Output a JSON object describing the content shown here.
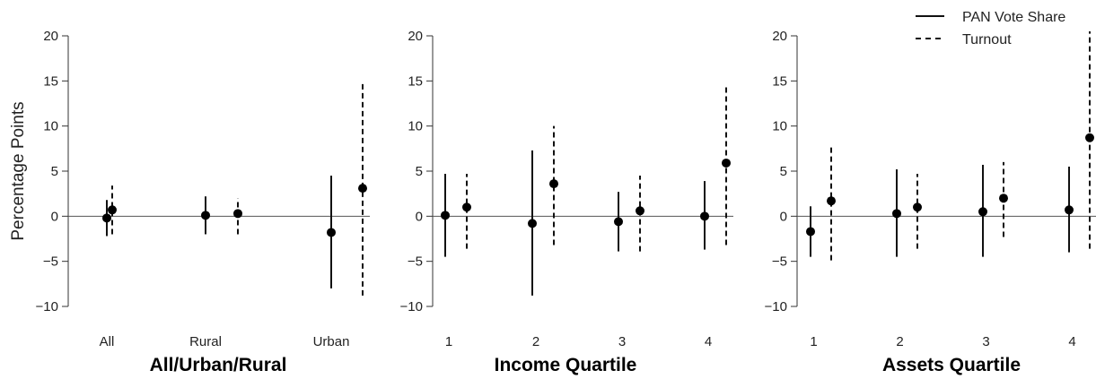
{
  "chart_data": {
    "type": "scatter",
    "ylabel": "Percentage Points",
    "ylim": [
      -10,
      20
    ],
    "yticks": [
      -10,
      -5,
      0,
      5,
      10,
      15,
      20
    ],
    "legend": {
      "placement": "top-right",
      "entries": [
        {
          "name": "PAN Vote Share",
          "style": "solid"
        },
        {
          "name": "Turnout",
          "style": "dashed"
        }
      ]
    },
    "panels": [
      {
        "title": "All/Urban/Rural",
        "categories": [
          "All",
          "Rural",
          "Urban"
        ],
        "series": [
          {
            "name": "PAN Vote Share",
            "style": "solid",
            "values": [
              -0.2,
              0.1,
              -1.8
            ],
            "lower": [
              -2.2,
              -2.0,
              -8.0
            ],
            "upper": [
              1.8,
              2.2,
              4.5
            ]
          },
          {
            "name": "Turnout",
            "style": "dashed",
            "values": [
              0.7,
              0.3,
              3.1
            ],
            "lower": [
              -2.0,
              -2.0,
              -8.8
            ],
            "upper": [
              3.4,
              2.0,
              14.8
            ]
          }
        ]
      },
      {
        "title": "Income Quartile",
        "categories": [
          "1",
          "2",
          "3",
          "4"
        ],
        "series": [
          {
            "name": "PAN Vote Share",
            "style": "solid",
            "values": [
              0.1,
              -0.8,
              -0.6,
              0.0
            ],
            "lower": [
              -4.5,
              -8.8,
              -3.9,
              -3.7
            ],
            "upper": [
              4.7,
              7.3,
              2.7,
              3.9
            ]
          },
          {
            "name": "Turnout",
            "style": "dashed",
            "values": [
              1.0,
              3.6,
              0.6,
              5.9
            ],
            "lower": [
              -3.6,
              -3.2,
              -3.9,
              -3.2
            ],
            "upper": [
              4.7,
              10.0,
              4.5,
              14.3
            ]
          }
        ]
      },
      {
        "title": "Assets Quartile",
        "categories": [
          "1",
          "2",
          "3",
          "4"
        ],
        "series": [
          {
            "name": "PAN Vote Share",
            "style": "solid",
            "values": [
              -1.7,
              0.3,
              0.5,
              0.7
            ],
            "lower": [
              -4.5,
              -4.5,
              -4.5,
              -4.0
            ],
            "upper": [
              1.1,
              5.2,
              5.7,
              5.5
            ]
          },
          {
            "name": "Turnout",
            "style": "dashed",
            "values": [
              1.7,
              1.0,
              2.0,
              8.7
            ],
            "lower": [
              -4.9,
              -3.6,
              -2.3,
              -3.6
            ],
            "upper": [
              8.0,
              4.7,
              6.0,
              20.5
            ]
          }
        ]
      }
    ]
  }
}
